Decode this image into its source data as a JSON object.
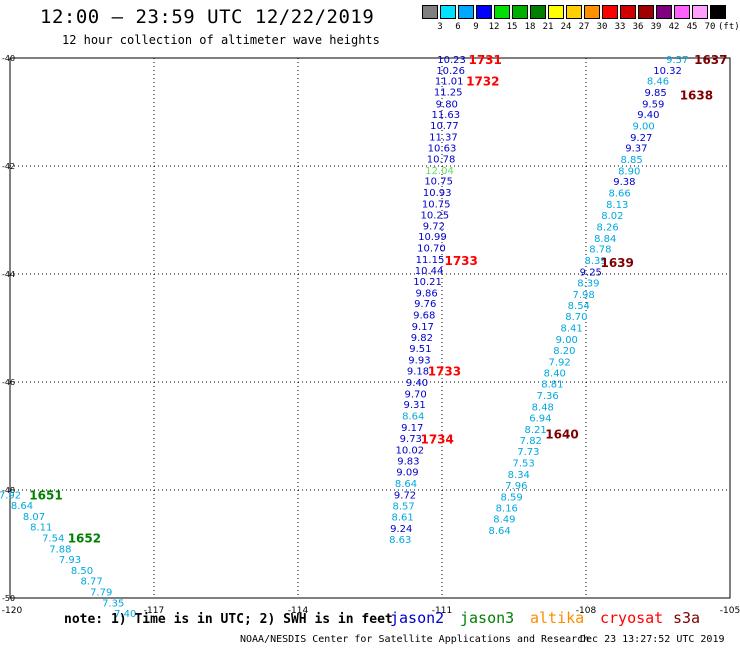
{
  "header": {
    "title": "12:00 — 23:59 UTC 12/22/2019",
    "subtitle": "12 hour collection of altimeter wave heights"
  },
  "scale": {
    "labels": [
      "3",
      "6",
      "9",
      "12",
      "15",
      "18",
      "21",
      "24",
      "27",
      "30",
      "33",
      "36",
      "39",
      "42",
      "45",
      "70",
      "(ft)"
    ],
    "colors": [
      "#808080",
      "#00e0ff",
      "#00a8ff",
      "#0000ff",
      "#00e000",
      "#00b000",
      "#008000",
      "#ffff00",
      "#ffd000",
      "#ff9000",
      "#ff0000",
      "#d00000",
      "#a00000",
      "#800080",
      "#ff60ff",
      "#ffa0ff",
      "#000000"
    ]
  },
  "chart_data": {
    "type": "scatter",
    "title": "12:00 — 23:59 UTC 12/22/2019",
    "subtitle": "12 hour collection of altimeter wave heights",
    "xlim": [
      -120,
      -105
    ],
    "ylim": [
      -50,
      -40
    ],
    "x_ticks": [
      "-120",
      "-117",
      "-114",
      "-111",
      "-108",
      "-105"
    ],
    "y_ticks": [
      "-40",
      "-42",
      "-44",
      "-46",
      "-48",
      "-50"
    ],
    "grid": true,
    "colors": {
      "jason2": "#0000cc",
      "jason3": "#008000",
      "altika": "#ff8c00",
      "cryosat": "#ff0000",
      "s3a": "#800000",
      "cyan": "#00a8e0",
      "blue": "#0000cc",
      "green": "#60e060"
    },
    "points": [
      {
        "x": -110.8,
        "y": -40.02,
        "v": "10.23",
        "c": "blue"
      },
      {
        "x": -110.82,
        "y": -40.22,
        "v": "10.26",
        "c": "blue"
      },
      {
        "x": -110.85,
        "y": -40.42,
        "v": "11.01",
        "c": "blue"
      },
      {
        "x": -110.87,
        "y": -40.62,
        "v": "11.25",
        "c": "blue"
      },
      {
        "x": -110.9,
        "y": -40.84,
        "v": "9.80",
        "c": "blue"
      },
      {
        "x": -110.92,
        "y": -41.04,
        "v": "11.63",
        "c": "blue"
      },
      {
        "x": -110.95,
        "y": -41.24,
        "v": "10.77",
        "c": "blue"
      },
      {
        "x": -110.97,
        "y": -41.45,
        "v": "11.37",
        "c": "blue"
      },
      {
        "x": -111.0,
        "y": -41.66,
        "v": "10.63",
        "c": "blue"
      },
      {
        "x": -111.02,
        "y": -41.86,
        "v": "10.78",
        "c": "blue"
      },
      {
        "x": -111.05,
        "y": -42.07,
        "v": "12.04",
        "c": "green"
      },
      {
        "x": -111.07,
        "y": -42.27,
        "v": "10.75",
        "c": "blue"
      },
      {
        "x": -111.1,
        "y": -42.48,
        "v": "10.93",
        "c": "blue"
      },
      {
        "x": -111.12,
        "y": -42.69,
        "v": "10.75",
        "c": "blue"
      },
      {
        "x": -111.15,
        "y": -42.9,
        "v": "10.25",
        "c": "blue"
      },
      {
        "x": -111.17,
        "y": -43.1,
        "v": "9.72",
        "c": "blue"
      },
      {
        "x": -111.2,
        "y": -43.3,
        "v": "10.99",
        "c": "blue"
      },
      {
        "x": -111.22,
        "y": -43.51,
        "v": "10.70",
        "c": "blue"
      },
      {
        "x": -111.25,
        "y": -43.72,
        "v": "11.15",
        "c": "blue"
      },
      {
        "x": -111.27,
        "y": -43.93,
        "v": "10.44",
        "c": "blue"
      },
      {
        "x": -111.3,
        "y": -44.13,
        "v": "10.21",
        "c": "blue"
      },
      {
        "x": -111.32,
        "y": -44.34,
        "v": "9.86",
        "c": "blue"
      },
      {
        "x": -111.35,
        "y": -44.54,
        "v": "9.76",
        "c": "blue"
      },
      {
        "x": -111.37,
        "y": -44.75,
        "v": "9.68",
        "c": "blue"
      },
      {
        "x": -111.4,
        "y": -44.96,
        "v": "9.17",
        "c": "blue"
      },
      {
        "x": -111.42,
        "y": -45.17,
        "v": "9.82",
        "c": "blue"
      },
      {
        "x": -111.45,
        "y": -45.37,
        "v": "9.51",
        "c": "blue"
      },
      {
        "x": -111.47,
        "y": -45.58,
        "v": "9.93",
        "c": "blue"
      },
      {
        "x": -111.5,
        "y": -45.79,
        "v": "9.18",
        "c": "blue"
      },
      {
        "x": -111.52,
        "y": -46.0,
        "v": "9.40",
        "c": "blue"
      },
      {
        "x": -111.55,
        "y": -46.21,
        "v": "9.70",
        "c": "blue"
      },
      {
        "x": -111.57,
        "y": -46.41,
        "v": "9.31",
        "c": "blue"
      },
      {
        "x": -111.6,
        "y": -46.62,
        "v": "8.64",
        "c": "cyan"
      },
      {
        "x": -111.62,
        "y": -46.83,
        "v": "9.17",
        "c": "blue"
      },
      {
        "x": -111.65,
        "y": -47.04,
        "v": "9.73",
        "c": "blue"
      },
      {
        "x": -111.67,
        "y": -47.25,
        "v": "10.02",
        "c": "blue"
      },
      {
        "x": -111.7,
        "y": -47.45,
        "v": "9.83",
        "c": "blue"
      },
      {
        "x": -111.72,
        "y": -47.66,
        "v": "9.09",
        "c": "blue"
      },
      {
        "x": -111.75,
        "y": -47.87,
        "v": "8.64",
        "c": "cyan"
      },
      {
        "x": -111.77,
        "y": -48.08,
        "v": "9.72",
        "c": "blue"
      },
      {
        "x": -111.8,
        "y": -48.29,
        "v": "8.57",
        "c": "cyan"
      },
      {
        "x": -111.82,
        "y": -48.49,
        "v": "8.61",
        "c": "cyan"
      },
      {
        "x": -111.85,
        "y": -48.7,
        "v": "9.24",
        "c": "blue"
      },
      {
        "x": -111.87,
        "y": -48.91,
        "v": "8.63",
        "c": "cyan"
      },
      {
        "x": -106.1,
        "y": -40.02,
        "v": "9.57",
        "c": "cyan"
      },
      {
        "x": -106.3,
        "y": -40.22,
        "v": "10.32",
        "c": "blue"
      },
      {
        "x": -106.5,
        "y": -40.42,
        "v": "8.46",
        "c": "cyan"
      },
      {
        "x": -106.55,
        "y": -40.63,
        "v": "9.85",
        "c": "blue"
      },
      {
        "x": -106.6,
        "y": -40.84,
        "v": "9.59",
        "c": "blue"
      },
      {
        "x": -106.7,
        "y": -41.04,
        "v": "9.40",
        "c": "blue"
      },
      {
        "x": -106.8,
        "y": -41.25,
        "v": "9.00",
        "c": "cyan"
      },
      {
        "x": -106.85,
        "y": -41.46,
        "v": "9.27",
        "c": "blue"
      },
      {
        "x": -106.95,
        "y": -41.66,
        "v": "9.37",
        "c": "blue"
      },
      {
        "x": -107.05,
        "y": -41.87,
        "v": "8.85",
        "c": "cyan"
      },
      {
        "x": -107.1,
        "y": -42.08,
        "v": "8.90",
        "c": "cyan"
      },
      {
        "x": -107.2,
        "y": -42.28,
        "v": "9.38",
        "c": "blue"
      },
      {
        "x": -107.3,
        "y": -42.49,
        "v": "8.66",
        "c": "cyan"
      },
      {
        "x": -107.35,
        "y": -42.7,
        "v": "8.13",
        "c": "cyan"
      },
      {
        "x": -107.45,
        "y": -42.91,
        "v": "8.02",
        "c": "cyan"
      },
      {
        "x": -107.55,
        "y": -43.12,
        "v": "8.26",
        "c": "cyan"
      },
      {
        "x": -107.6,
        "y": -43.33,
        "v": "8.84",
        "c": "cyan"
      },
      {
        "x": -107.7,
        "y": -43.53,
        "v": "8.78",
        "c": "cyan"
      },
      {
        "x": -107.8,
        "y": -43.74,
        "v": "8.39",
        "c": "cyan"
      },
      {
        "x": -107.9,
        "y": -43.95,
        "v": "9.25",
        "c": "blue"
      },
      {
        "x": -107.95,
        "y": -44.16,
        "v": "8.39",
        "c": "cyan"
      },
      {
        "x": -108.05,
        "y": -44.37,
        "v": "7.98",
        "c": "cyan"
      },
      {
        "x": -108.15,
        "y": -44.57,
        "v": "8.54",
        "c": "cyan"
      },
      {
        "x": -108.2,
        "y": -44.78,
        "v": "8.70",
        "c": "cyan"
      },
      {
        "x": -108.3,
        "y": -44.99,
        "v": "8.41",
        "c": "cyan"
      },
      {
        "x": -108.4,
        "y": -45.2,
        "v": "9.00",
        "c": "cyan"
      },
      {
        "x": -108.45,
        "y": -45.41,
        "v": "8.20",
        "c": "cyan"
      },
      {
        "x": -108.55,
        "y": -45.62,
        "v": "7.92",
        "c": "cyan"
      },
      {
        "x": -108.65,
        "y": -45.82,
        "v": "8.40",
        "c": "cyan"
      },
      {
        "x": -108.7,
        "y": -46.03,
        "v": "8.81",
        "c": "cyan"
      },
      {
        "x": -108.8,
        "y": -46.24,
        "v": "7.36",
        "c": "cyan"
      },
      {
        "x": -108.9,
        "y": -46.45,
        "v": "8.48",
        "c": "cyan"
      },
      {
        "x": -108.95,
        "y": -46.66,
        "v": "6.94",
        "c": "cyan"
      },
      {
        "x": -109.05,
        "y": -46.87,
        "v": "8.21",
        "c": "cyan"
      },
      {
        "x": -109.15,
        "y": -47.07,
        "v": "7.82",
        "c": "cyan"
      },
      {
        "x": -109.2,
        "y": -47.28,
        "v": "7.73",
        "c": "cyan"
      },
      {
        "x": -109.3,
        "y": -47.49,
        "v": "7.53",
        "c": "cyan"
      },
      {
        "x": -109.4,
        "y": -47.7,
        "v": "8.34",
        "c": "cyan"
      },
      {
        "x": -109.45,
        "y": -47.91,
        "v": "7.96",
        "c": "cyan"
      },
      {
        "x": -109.55,
        "y": -48.12,
        "v": "8.59",
        "c": "cyan"
      },
      {
        "x": -109.65,
        "y": -48.32,
        "v": "8.16",
        "c": "cyan"
      },
      {
        "x": -109.7,
        "y": -48.53,
        "v": "8.49",
        "c": "cyan"
      },
      {
        "x": -109.8,
        "y": -48.74,
        "v": "8.64",
        "c": "cyan"
      },
      {
        "x": -120.0,
        "y": -48.08,
        "v": "7.92",
        "c": "cyan"
      },
      {
        "x": -119.75,
        "y": -48.28,
        "v": "8.64",
        "c": "cyan"
      },
      {
        "x": -119.5,
        "y": -48.48,
        "v": "8.07",
        "c": "cyan"
      },
      {
        "x": -119.35,
        "y": -48.68,
        "v": "8.11",
        "c": "cyan"
      },
      {
        "x": -119.1,
        "y": -48.88,
        "v": "7.54",
        "c": "cyan"
      },
      {
        "x": -118.95,
        "y": -49.08,
        "v": "7.88",
        "c": "cyan"
      },
      {
        "x": -118.75,
        "y": -49.28,
        "v": "7.93",
        "c": "cyan"
      },
      {
        "x": -118.5,
        "y": -49.48,
        "v": "8.50",
        "c": "cyan"
      },
      {
        "x": -118.3,
        "y": -49.68,
        "v": "8.77",
        "c": "cyan"
      },
      {
        "x": -118.1,
        "y": -49.88,
        "v": "7.79",
        "c": "cyan"
      },
      {
        "x": -117.85,
        "y": -50.08,
        "v": "7.35",
        "c": "cyan"
      },
      {
        "x": -117.6,
        "y": -50.28,
        "v": "7.40",
        "c": "cyan"
      }
    ],
    "time_labels": [
      {
        "x": -110.1,
        "y": -40.02,
        "t": "1731",
        "c": "cryosat"
      },
      {
        "x": -110.15,
        "y": -40.42,
        "t": "1732",
        "c": "cryosat"
      },
      {
        "x": -110.6,
        "y": -43.74,
        "t": "1733",
        "c": "cryosat"
      },
      {
        "x": -110.95,
        "y": -45.79,
        "t": "1733",
        "c": "cryosat"
      },
      {
        "x": -111.1,
        "y": -47.05,
        "t": "1734",
        "c": "cryosat"
      },
      {
        "x": -105.4,
        "y": -40.02,
        "t": "1637",
        "c": "s3a"
      },
      {
        "x": -105.7,
        "y": -40.68,
        "t": "1638",
        "c": "s3a"
      },
      {
        "x": -107.35,
        "y": -43.78,
        "t": "1639",
        "c": "s3a"
      },
      {
        "x": -108.5,
        "y": -46.95,
        "t": "1640",
        "c": "s3a"
      },
      {
        "x": -119.25,
        "y": -48.08,
        "t": "1651",
        "c": "jason3"
      },
      {
        "x": -118.45,
        "y": -48.88,
        "t": "1652",
        "c": "jason3"
      }
    ]
  },
  "note": "note: 1) Time is in UTC; 2) SWH is in feet",
  "satellites": [
    {
      "name": "jason2",
      "color": "#0000cc"
    },
    {
      "name": "jason3",
      "color": "#008000"
    },
    {
      "name": "altika",
      "color": "#ff8c00"
    },
    {
      "name": "cryosat",
      "color": "#ff0000"
    },
    {
      "name": "s3a",
      "color": "#800000"
    }
  ],
  "footer": {
    "credit": "NOAA/NESDIS Center for Satellite Applications and Research",
    "timestamp": "Dec 23 13:27:52 UTC 2019"
  }
}
